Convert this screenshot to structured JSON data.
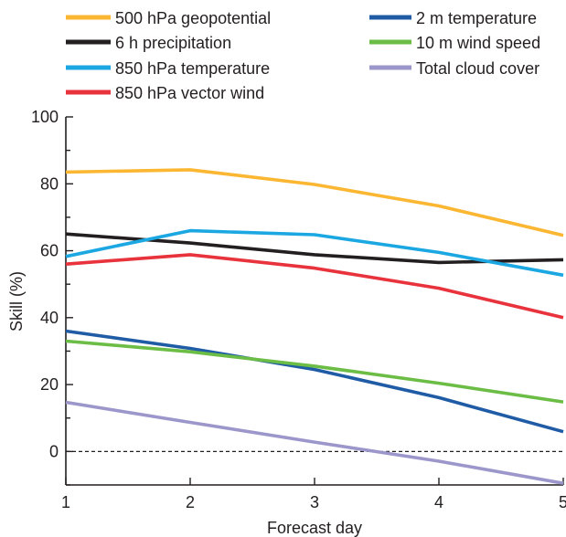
{
  "chart_data": {
    "type": "line",
    "title": "",
    "xlabel": "Forecast day",
    "ylabel": "Skill (%)",
    "x": [
      1,
      2,
      3,
      4,
      5
    ],
    "xlim": [
      1,
      5
    ],
    "ylim": [
      -10,
      100
    ],
    "yticks": [
      0,
      20,
      40,
      60,
      80,
      100
    ],
    "xticks": [
      1,
      2,
      3,
      4,
      5
    ],
    "grid": false,
    "zero_line": "dashed",
    "legend_placement": "top",
    "series": [
      {
        "name": "500 hPa geopotential",
        "color": "#fbb632",
        "values": [
          83.5,
          84.2,
          79.8,
          73.4,
          64.6
        ]
      },
      {
        "name": "6 h precipitation",
        "color": "#231f20",
        "values": [
          65.0,
          62.3,
          58.8,
          56.5,
          57.3
        ]
      },
      {
        "name": "850 hPa temperature",
        "color": "#1ba7e1",
        "values": [
          58.3,
          66.0,
          64.8,
          59.5,
          52.7
        ]
      },
      {
        "name": "850 hPa vector wind",
        "color": "#e8323c",
        "values": [
          56.0,
          58.8,
          54.8,
          48.8,
          40.0
        ]
      },
      {
        "name": "2 m temperature",
        "color": "#1f5ca5",
        "values": [
          36.0,
          30.8,
          24.5,
          16.1,
          5.9
        ]
      },
      {
        "name": "10 m wind speed",
        "color": "#6cbd45",
        "values": [
          33.0,
          29.8,
          25.5,
          20.4,
          14.8
        ]
      },
      {
        "name": "Total cloud cover",
        "color": "#9b97cb",
        "values": [
          14.7,
          8.7,
          2.8,
          -2.9,
          -9.5
        ]
      }
    ]
  }
}
